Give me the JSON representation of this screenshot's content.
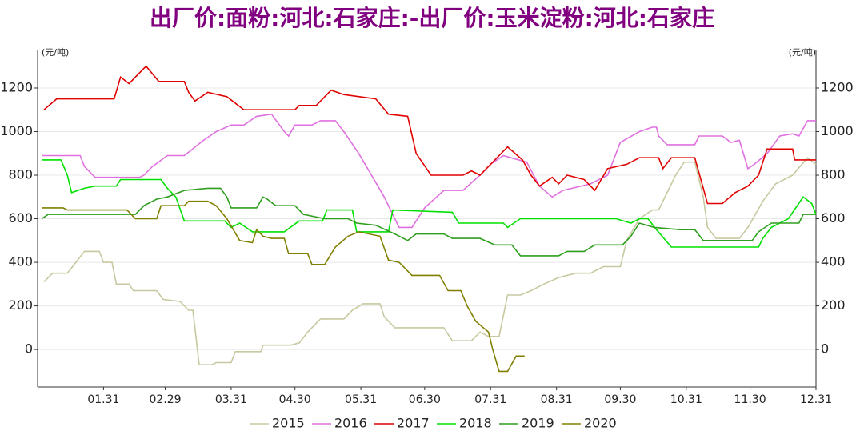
{
  "chart_data": {
    "type": "line",
    "title": "出厂价:面粉:河北:石家庄:-出厂价:玉米淀粉:河北:石家庄",
    "y_unit": "(元/吨)",
    "y2_unit": "(元/吨)",
    "xlim": [
      0,
      366
    ],
    "xticks": [
      {
        "value": 31,
        "label": "01.31"
      },
      {
        "value": 60,
        "label": "02.29"
      },
      {
        "value": 91,
        "label": "03.31"
      },
      {
        "value": 121,
        "label": "04.30"
      },
      {
        "value": 152,
        "label": "05.31"
      },
      {
        "value": 182,
        "label": "06.30"
      },
      {
        "value": 213,
        "label": "07.31"
      },
      {
        "value": 244,
        "label": "08.31"
      },
      {
        "value": 274,
        "label": "09.30"
      },
      {
        "value": 305,
        "label": "10.31"
      },
      {
        "value": 335,
        "label": "11.30"
      },
      {
        "value": 366,
        "label": "12.31"
      }
    ],
    "ylim": [
      -172,
      1376
    ],
    "yticks": [
      0,
      200,
      400,
      600,
      800,
      1000,
      1200
    ],
    "y2lim": [
      -172,
      1376
    ],
    "y2ticks": [
      0,
      200,
      400,
      600,
      800,
      1000,
      1200
    ],
    "grid": true,
    "legend": "bottom",
    "series": [
      {
        "name": "2015",
        "color": "#c8c8a0",
        "x": [
          3,
          7,
          14,
          18,
          22,
          29,
          31,
          35,
          37,
          43,
          45,
          56,
          59,
          67,
          71,
          73,
          76,
          82,
          84,
          91,
          93,
          105,
          106,
          119,
          123,
          127,
          133,
          144,
          148,
          153,
          161,
          163,
          168,
          191,
          195,
          204,
          208,
          212,
          217,
          221,
          227,
          232,
          238,
          245,
          253,
          260,
          266,
          274,
          277,
          283,
          289,
          292,
          300,
          304,
          309,
          313,
          315,
          319,
          330,
          334,
          341,
          347,
          355,
          362,
          366
        ],
        "values": [
          310,
          350,
          350,
          400,
          450,
          450,
          400,
          400,
          300,
          300,
          270,
          270,
          230,
          220,
          180,
          180,
          -70,
          -70,
          -60,
          -60,
          -10,
          -10,
          20,
          20,
          30,
          80,
          140,
          140,
          180,
          210,
          210,
          150,
          100,
          100,
          40,
          40,
          80,
          60,
          60,
          250,
          250,
          270,
          300,
          330,
          350,
          350,
          380,
          380,
          500,
          600,
          640,
          640,
          800,
          860,
          860,
          700,
          560,
          510,
          510,
          560,
          680,
          760,
          800,
          880,
          850
        ]
      },
      {
        "name": "2016",
        "color": "#e070e0",
        "x": [
          2,
          20,
          22,
          27,
          48,
          50,
          54,
          61,
          69,
          78,
          84,
          91,
          97,
          103,
          110,
          116,
          118,
          121,
          129,
          133,
          140,
          144,
          151,
          157,
          163,
          170,
          176,
          182,
          191,
          200,
          208,
          213,
          219,
          230,
          236,
          242,
          247,
          260,
          268,
          274,
          283,
          289,
          291,
          292,
          296,
          309,
          311,
          322,
          326,
          330,
          334,
          337,
          343,
          349,
          355,
          358,
          362,
          366
        ],
        "values": [
          890,
          890,
          840,
          790,
          790,
          800,
          840,
          890,
          890,
          960,
          1000,
          1030,
          1030,
          1070,
          1080,
          1000,
          980,
          1030,
          1030,
          1050,
          1050,
          1000,
          900,
          800,
          700,
          560,
          560,
          650,
          730,
          730,
          800,
          850,
          890,
          860,
          750,
          700,
          730,
          760,
          800,
          950,
          1000,
          1020,
          1020,
          980,
          940,
          940,
          980,
          980,
          950,
          960,
          830,
          850,
          900,
          980,
          990,
          980,
          1050,
          1050
        ]
      },
      {
        "name": "2017",
        "color": "#e00000",
        "x": [
          3,
          9,
          36,
          39,
          43,
          47,
          51,
          57,
          69,
          71,
          74,
          80,
          89,
          97,
          121,
          123,
          131,
          135,
          138,
          144,
          159,
          165,
          174,
          178,
          185,
          200,
          204,
          208,
          215,
          221,
          228,
          232,
          236,
          242,
          245,
          249,
          257,
          262,
          268,
          277,
          283,
          292,
          294,
          298,
          309,
          315,
          322,
          328,
          334,
          339,
          343,
          355,
          356,
          366
        ],
        "values": [
          1100,
          1150,
          1150,
          1250,
          1220,
          1260,
          1300,
          1230,
          1230,
          1180,
          1140,
          1180,
          1160,
          1100,
          1100,
          1120,
          1120,
          1160,
          1190,
          1170,
          1150,
          1080,
          1070,
          900,
          800,
          800,
          820,
          800,
          870,
          930,
          870,
          800,
          750,
          790,
          760,
          800,
          780,
          730,
          830,
          850,
          880,
          880,
          830,
          880,
          880,
          670,
          670,
          720,
          750,
          800,
          920,
          920,
          870,
          870
        ]
      },
      {
        "name": "2018",
        "color": "#00e000",
        "x": [
          2,
          11,
          14,
          16,
          22,
          27,
          37,
          39,
          58,
          61,
          65,
          69,
          88,
          91,
          95,
          101,
          116,
          123,
          134,
          136,
          148,
          150,
          165,
          167,
          195,
          198,
          219,
          221,
          227,
          272,
          279,
          283,
          287,
          291,
          298,
          339,
          341,
          345,
          353,
          360,
          364,
          366
        ],
        "values": [
          870,
          870,
          800,
          720,
          740,
          750,
          750,
          780,
          780,
          740,
          700,
          590,
          590,
          560,
          580,
          540,
          540,
          590,
          590,
          640,
          640,
          540,
          540,
          640,
          630,
          580,
          580,
          560,
          600,
          600,
          580,
          600,
          600,
          550,
          470,
          470,
          510,
          560,
          600,
          700,
          670,
          620
        ]
      },
      {
        "name": "2019",
        "color": "#2e9e1e",
        "x": [
          2,
          5,
          46,
          50,
          56,
          61,
          69,
          80,
          86,
          89,
          91,
          103,
          106,
          108,
          112,
          121,
          125,
          135,
          146,
          150,
          159,
          168,
          174,
          178,
          191,
          195,
          208,
          215,
          223,
          227,
          245,
          249,
          257,
          262,
          275,
          279,
          283,
          290,
          302,
          309,
          313,
          336,
          339,
          345,
          358,
          360,
          366
        ],
        "values": [
          600,
          620,
          620,
          660,
          690,
          700,
          730,
          740,
          740,
          700,
          650,
          650,
          700,
          690,
          660,
          660,
          620,
          600,
          600,
          580,
          570,
          530,
          500,
          530,
          530,
          510,
          510,
          480,
          480,
          430,
          430,
          450,
          450,
          480,
          480,
          520,
          580,
          560,
          550,
          550,
          500,
          500,
          540,
          580,
          580,
          620,
          620
        ]
      },
      {
        "name": "2020",
        "color": "#808000",
        "x": [
          2,
          12,
          14,
          42,
          46,
          56,
          58,
          69,
          71,
          80,
          84,
          89,
          95,
          101,
          103,
          106,
          110,
          116,
          118,
          127,
          129,
          135,
          140,
          146,
          151,
          161,
          165,
          170,
          176,
          189,
          193,
          199,
          202,
          206,
          212,
          214,
          217,
          221,
          225,
          229
        ],
        "values": [
          650,
          650,
          640,
          640,
          600,
          600,
          660,
          660,
          680,
          680,
          660,
          600,
          500,
          490,
          550,
          520,
          510,
          510,
          440,
          440,
          390,
          390,
          470,
          520,
          540,
          520,
          410,
          400,
          340,
          340,
          270,
          270,
          200,
          130,
          80,
          0,
          -100,
          -100,
          -30,
          -30
        ]
      }
    ]
  }
}
